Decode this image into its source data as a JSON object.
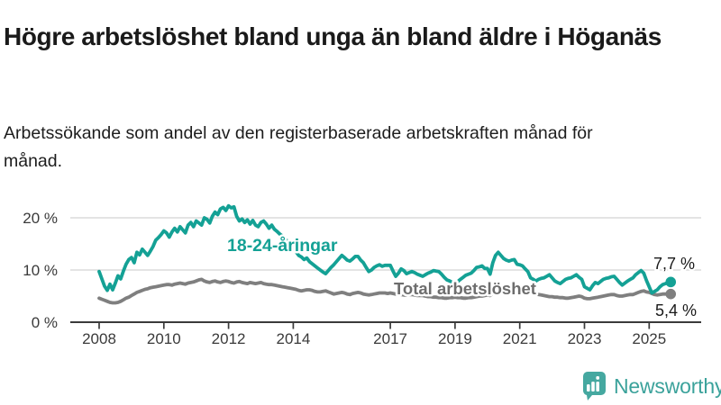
{
  "header": {
    "title": "Högre arbetslöshet bland unga än bland äldre i Höganäs",
    "subtitle": "Arbetssökande som andel av den registerbaserade arbetskraften månad för månad."
  },
  "chart_data": {
    "type": "line",
    "unit": "%",
    "x_interval": "monthly",
    "x_start": "2008-01",
    "x_end": "2025-09",
    "x_ticks": [
      {
        "year": 2008,
        "label": "2008"
      },
      {
        "year": 2010,
        "label": "2010"
      },
      {
        "year": 2012,
        "label": "2012"
      },
      {
        "year": 2014,
        "label": "2014"
      },
      {
        "year": 2017,
        "label": "2017"
      },
      {
        "year": 2019,
        "label": "2019"
      },
      {
        "year": 2021,
        "label": "2021"
      },
      {
        "year": 2023,
        "label": "2023"
      },
      {
        "year": 2025,
        "label": "2025"
      }
    ],
    "y_ticks": [
      {
        "value": 0,
        "label": "0 %"
      },
      {
        "value": 10,
        "label": "10 %"
      },
      {
        "value": 20,
        "label": "20 %"
      }
    ],
    "ylim": [
      0,
      24
    ],
    "grid": "horizontal",
    "legend_position": "inline-annotations",
    "series": [
      {
        "name": "Total arbetslöshet",
        "color": "#7f7f7f",
        "label_color": "#6d6d6d",
        "end_value": 5.4,
        "end_label": "5,4 %",
        "values": [
          4.6,
          4.4,
          4.2,
          4.0,
          3.8,
          3.7,
          3.7,
          3.8,
          4.0,
          4.3,
          4.6,
          4.8,
          5.1,
          5.4,
          5.7,
          5.9,
          6.1,
          6.3,
          6.4,
          6.6,
          6.7,
          6.8,
          6.9,
          7.0,
          7.1,
          7.2,
          7.2,
          7.1,
          7.3,
          7.4,
          7.5,
          7.4,
          7.3,
          7.5,
          7.6,
          7.7,
          7.9,
          8.1,
          8.2,
          7.9,
          7.7,
          7.6,
          7.8,
          7.9,
          7.7,
          7.6,
          7.8,
          7.9,
          7.8,
          7.6,
          7.5,
          7.7,
          7.8,
          7.6,
          7.5,
          7.4,
          7.6,
          7.5,
          7.4,
          7.5,
          7.6,
          7.4,
          7.3,
          7.2,
          7.2,
          7.1,
          7.0,
          6.9,
          6.8,
          6.7,
          6.6,
          6.5,
          6.4,
          6.3,
          6.1,
          6.0,
          6.1,
          6.2,
          6.2,
          6.1,
          5.9,
          5.8,
          5.8,
          5.9,
          6.0,
          5.8,
          5.6,
          5.4,
          5.5,
          5.6,
          5.7,
          5.6,
          5.4,
          5.3,
          5.5,
          5.6,
          5.7,
          5.6,
          5.4,
          5.3,
          5.2,
          5.3,
          5.4,
          5.5,
          5.6,
          5.6,
          5.6,
          5.5,
          5.6,
          5.5,
          5.4,
          5.3,
          5.3,
          5.2,
          5.2,
          5.3,
          5.3,
          5.2,
          5.1,
          5.1,
          5.1,
          5.0,
          4.9,
          4.9,
          4.8,
          4.8,
          4.7,
          4.7,
          4.6,
          4.6,
          4.7,
          4.7,
          4.8,
          4.7,
          4.7,
          4.6,
          4.6,
          4.7,
          4.7,
          4.8,
          4.9,
          5.0,
          5.0,
          5.1,
          5.2,
          5.1,
          5.6,
          6.2,
          6.6,
          6.8,
          6.9,
          6.8,
          6.7,
          6.6,
          6.5,
          6.4,
          6.3,
          6.2,
          6.0,
          5.9,
          5.7,
          5.6,
          5.4,
          5.3,
          5.2,
          5.1,
          5.0,
          4.9,
          4.9,
          4.8,
          4.8,
          4.7,
          4.7,
          4.6,
          4.6,
          4.7,
          4.8,
          4.9,
          5.0,
          4.9,
          4.6,
          4.5,
          4.5,
          4.6,
          4.7,
          4.8,
          4.9,
          5.0,
          5.1,
          5.2,
          5.3,
          5.3,
          5.1,
          5.0,
          5.0,
          5.1,
          5.2,
          5.3,
          5.3,
          5.5,
          5.7,
          5.9,
          6.0,
          5.8,
          5.7,
          5.5,
          5.3,
          5.2,
          5.3,
          5.4,
          5.4,
          5.4,
          5.4
        ]
      },
      {
        "name": "18-24-åringar",
        "color": "#14a195",
        "label_color": "#14a195",
        "end_value": 7.7,
        "end_label": "7,7 %",
        "values": [
          9.7,
          8.3,
          6.9,
          6.1,
          7.3,
          6.2,
          7.5,
          8.9,
          8.3,
          9.8,
          11.1,
          12.0,
          12.4,
          11.4,
          13.4,
          12.9,
          14.0,
          13.4,
          12.8,
          13.6,
          14.5,
          15.7,
          16.2,
          16.8,
          17.5,
          17.1,
          16.3,
          17.3,
          18.0,
          17.3,
          18.3,
          17.7,
          17.1,
          18.6,
          19.1,
          18.3,
          19.4,
          19.0,
          18.6,
          20.0,
          19.7,
          19.0,
          20.3,
          21.1,
          20.6,
          21.7,
          22.0,
          21.4,
          22.3,
          21.9,
          22.1,
          20.3,
          19.4,
          19.8,
          19.1,
          19.6,
          18.8,
          19.5,
          18.6,
          18.3,
          19.1,
          19.4,
          18.8,
          18.0,
          18.6,
          17.8,
          17.4,
          16.9,
          16.5,
          16.0,
          15.4,
          15.0,
          14.3,
          13.5,
          12.8,
          12.5,
          12.0,
          12.3,
          11.6,
          11.2,
          10.8,
          10.4,
          10.0,
          9.6,
          9.3,
          9.9,
          10.5,
          11.0,
          11.6,
          12.2,
          12.8,
          12.4,
          11.9,
          11.7,
          12.1,
          12.6,
          12.6,
          11.9,
          11.4,
          10.5,
          9.7,
          10.0,
          10.5,
          10.8,
          11.0,
          10.7,
          10.9,
          10.9,
          10.9,
          9.8,
          8.8,
          9.4,
          10.2,
          9.9,
          9.3,
          9.5,
          9.7,
          9.5,
          9.2,
          9.0,
          8.8,
          9.1,
          9.4,
          9.6,
          9.9,
          9.8,
          9.7,
          9.2,
          8.6,
          8.1,
          7.9,
          7.6,
          7.5,
          7.8,
          8.2,
          8.6,
          9.0,
          9.2,
          9.4,
          9.9,
          10.5,
          10.6,
          10.8,
          10.3,
          10.3,
          9.2,
          11.4,
          12.8,
          13.4,
          12.8,
          12.2,
          11.9,
          11.7,
          11.9,
          12.0,
          11.1,
          11.0,
          10.8,
          10.2,
          9.7,
          8.5,
          8.2,
          7.9,
          8.2,
          8.4,
          8.5,
          8.8,
          9.1,
          8.5,
          7.9,
          7.6,
          7.4,
          7.8,
          8.2,
          8.4,
          8.5,
          8.8,
          9.1,
          8.6,
          8.2,
          6.8,
          6.5,
          6.2,
          7.0,
          7.6,
          7.4,
          7.8,
          8.2,
          8.4,
          8.5,
          8.7,
          8.8,
          8.2,
          7.6,
          7.1,
          7.5,
          7.9,
          8.2,
          8.5,
          9.1,
          9.5,
          9.9,
          9.4,
          8.0,
          6.8,
          5.6,
          5.9,
          6.2,
          6.8,
          7.2,
          7.4,
          7.6,
          7.7
        ]
      }
    ]
  },
  "branding": {
    "name": "Newsworthy",
    "color": "#3ba29b"
  },
  "colors": {
    "axis": "#3a3a3a",
    "grid": "#dcdcdc",
    "text": "#1a1a1a",
    "background": "#ffffff"
  }
}
